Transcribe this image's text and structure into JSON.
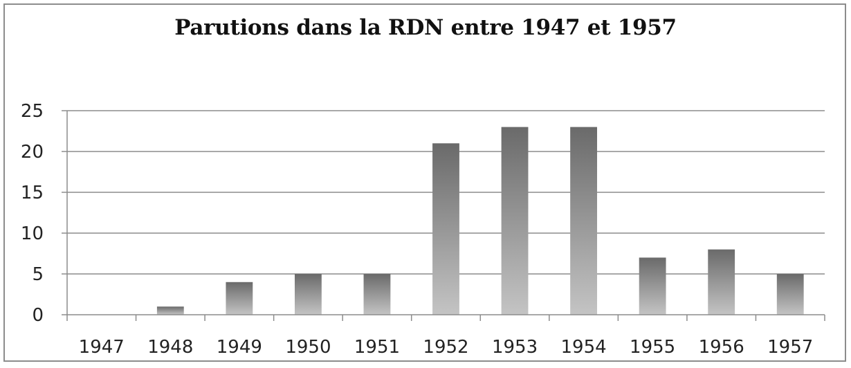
{
  "chart_data": {
    "type": "bar",
    "title": "Parutions dans la RDN entre 1947 et 1957",
    "categories": [
      "1947",
      "1948",
      "1949",
      "1950",
      "1951",
      "1952",
      "1953",
      "1954",
      "1955",
      "1956",
      "1957"
    ],
    "values": [
      0,
      1,
      4,
      5,
      5,
      21,
      23,
      23,
      7,
      8,
      5
    ],
    "ylim": [
      0,
      25
    ],
    "yticks": [
      0,
      5,
      10,
      15,
      20,
      25
    ],
    "grid": true,
    "legend": "none",
    "colors": {
      "bar_top": "#6a6a6a",
      "bar_bottom": "#c4c4c4",
      "grid": "#8c8c8c",
      "axis": "#8c8c8c"
    }
  }
}
